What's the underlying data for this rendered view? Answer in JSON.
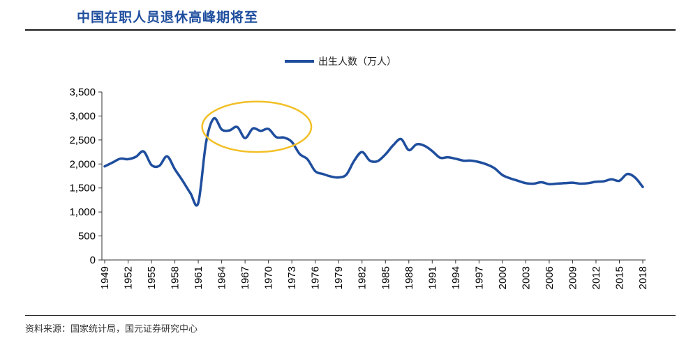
{
  "header": {
    "title": "中国在职人员退休高峰期将至"
  },
  "footer": {
    "source": "资料来源：国家统计局，国元证券研究中心"
  },
  "colors": {
    "line": "#1f4e9e",
    "highlight": "#f2bf26",
    "title": "#1f4e9e"
  },
  "chart_data": {
    "type": "line",
    "title": "",
    "xlabel": "",
    "ylabel": "",
    "legend": {
      "position": "top-center",
      "entries": [
        "出生人数（万人）"
      ]
    },
    "ylim": [
      0,
      3500
    ],
    "yticks": [
      0,
      500,
      1000,
      1500,
      2000,
      2500,
      3000,
      3500
    ],
    "ytick_labels": [
      "0",
      "500",
      "1,000",
      "1,500",
      "2,000",
      "2,500",
      "3,000",
      "3,500"
    ],
    "xlim": [
      1949,
      2018
    ],
    "xticks": [
      1949,
      1952,
      1955,
      1958,
      1961,
      1964,
      1967,
      1970,
      1973,
      1976,
      1979,
      1982,
      1985,
      1988,
      1991,
      1994,
      1997,
      2000,
      2003,
      2006,
      2009,
      2012,
      2015,
      2018
    ],
    "grid": false,
    "annotation": {
      "type": "ellipse",
      "x_range": [
        1961.5,
        1975.5
      ],
      "y_range": [
        2250,
        3300
      ]
    },
    "series": [
      {
        "name": "出生人数（万人）",
        "x": [
          1949,
          1950,
          1951,
          1952,
          1953,
          1954,
          1955,
          1956,
          1957,
          1958,
          1959,
          1960,
          1961,
          1962,
          1963,
          1964,
          1965,
          1966,
          1967,
          1968,
          1969,
          1970,
          1971,
          1972,
          1973,
          1974,
          1975,
          1976,
          1977,
          1978,
          1979,
          1980,
          1981,
          1982,
          1983,
          1984,
          1985,
          1986,
          1987,
          1988,
          1989,
          1990,
          1991,
          1992,
          1993,
          1994,
          1995,
          1996,
          1997,
          1998,
          1999,
          2000,
          2001,
          2002,
          2003,
          2004,
          2005,
          2006,
          2007,
          2008,
          2009,
          2010,
          2011,
          2012,
          2013,
          2014,
          2015,
          2016,
          2017,
          2018
        ],
        "values": [
          1950,
          2030,
          2110,
          2100,
          2150,
          2260,
          1980,
          1960,
          2160,
          1890,
          1650,
          1390,
          1190,
          2450,
          2950,
          2720,
          2700,
          2770,
          2540,
          2740,
          2690,
          2730,
          2560,
          2550,
          2460,
          2210,
          2100,
          1850,
          1790,
          1740,
          1720,
          1780,
          2070,
          2250,
          2070,
          2060,
          2200,
          2390,
          2520,
          2290,
          2410,
          2380,
          2270,
          2130,
          2140,
          2110,
          2070,
          2070,
          2040,
          1990,
          1910,
          1770,
          1700,
          1650,
          1600,
          1590,
          1620,
          1580,
          1590,
          1600,
          1610,
          1590,
          1600,
          1630,
          1640,
          1680,
          1650,
          1790,
          1720,
          1520
        ]
      }
    ]
  }
}
